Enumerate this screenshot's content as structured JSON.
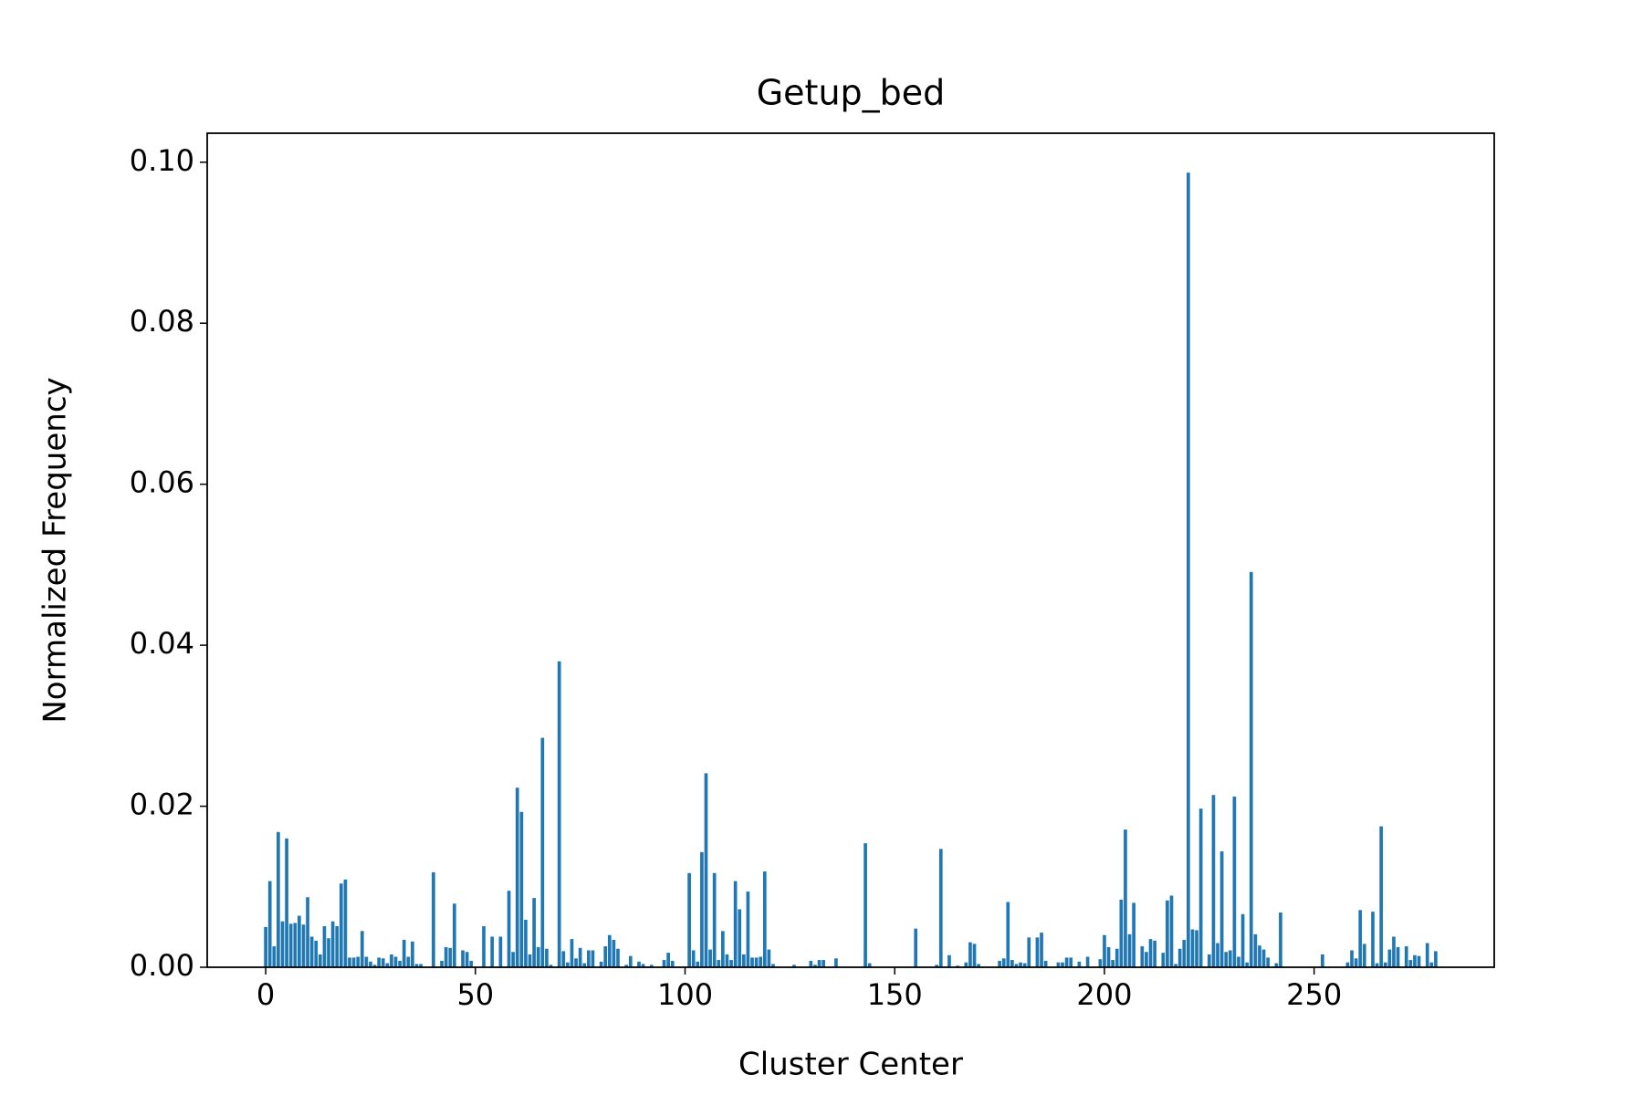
{
  "chart_data": {
    "type": "bar",
    "title": "Getup_bed",
    "xlabel": "Cluster Center",
    "ylabel": "Normalized Frequency",
    "color": "#1f77b4",
    "x": [
      0,
      1,
      2,
      3,
      4,
      5,
      6,
      7,
      8,
      9,
      10,
      11,
      12,
      13,
      14,
      15,
      16,
      17,
      18,
      19,
      20,
      21,
      22,
      23,
      24,
      25,
      26,
      27,
      28,
      29,
      30,
      31,
      32,
      33,
      34,
      35,
      36,
      37,
      38,
      39,
      40,
      41,
      42,
      43,
      44,
      45,
      46,
      47,
      48,
      49,
      50,
      51,
      52,
      53,
      54,
      55,
      56,
      57,
      58,
      59,
      60,
      61,
      62,
      63,
      64,
      65,
      66,
      67,
      68,
      69,
      70,
      71,
      72,
      73,
      74,
      75,
      76,
      77,
      78,
      79,
      80,
      81,
      82,
      83,
      84,
      85,
      86,
      87,
      88,
      89,
      90,
      91,
      92,
      93,
      94,
      95,
      96,
      97,
      98,
      99,
      100,
      101,
      102,
      103,
      104,
      105,
      106,
      107,
      108,
      109,
      110,
      111,
      112,
      113,
      114,
      115,
      116,
      117,
      118,
      119,
      120,
      121,
      122,
      123,
      124,
      125,
      126,
      127,
      128,
      129,
      130,
      131,
      132,
      133,
      134,
      135,
      136,
      137,
      138,
      139,
      140,
      141,
      142,
      143,
      144,
      145,
      146,
      147,
      148,
      149,
      150,
      151,
      152,
      153,
      154,
      155,
      156,
      157,
      158,
      159,
      160,
      161,
      162,
      163,
      164,
      165,
      166,
      167,
      168,
      169,
      170,
      171,
      172,
      173,
      174,
      175,
      176,
      177,
      178,
      179,
      180,
      181,
      182,
      183,
      184,
      185,
      186,
      187,
      188,
      189,
      190,
      191,
      192,
      193,
      194,
      195,
      196,
      197,
      198,
      199,
      200,
      201,
      202,
      203,
      204,
      205,
      206,
      207,
      208,
      209,
      210,
      211,
      212,
      213,
      214,
      215,
      216,
      217,
      218,
      219,
      220,
      221,
      222,
      223,
      224,
      225,
      226,
      227,
      228,
      229,
      230,
      231,
      232,
      233,
      234,
      235,
      236,
      237,
      238,
      239,
      240,
      241,
      242,
      243,
      244,
      245,
      246,
      247,
      248,
      249,
      250,
      251,
      252,
      253,
      254,
      255,
      256,
      257,
      258,
      259,
      260,
      261,
      262,
      263,
      264,
      265,
      266,
      267,
      268,
      269,
      270,
      271,
      272,
      273,
      274,
      275,
      276,
      277,
      278,
      279
    ],
    "values": [
      0.005,
      0.0107,
      0.0026,
      0.0168,
      0.0057,
      0.016,
      0.0054,
      0.0055,
      0.0064,
      0.0053,
      0.0087,
      0.0038,
      0.0033,
      0.0016,
      0.0051,
      0.0036,
      0.0057,
      0.0051,
      0.0104,
      0.0109,
      0.0012,
      0.0012,
      0.0013,
      0.0045,
      0.0013,
      0.0007,
      0.0003,
      0.0012,
      0.0011,
      0.0005,
      0.0016,
      0.0013,
      0.0008,
      0.0034,
      0.0013,
      0.0032,
      0.0004,
      0.0004,
      0,
      0,
      0.0118,
      0,
      0.0008,
      0.0025,
      0.0024,
      0.0079,
      0,
      0.0021,
      0.0019,
      0.0008,
      0,
      0,
      0.0051,
      0,
      0.0038,
      0,
      0.0038,
      0,
      0.0095,
      0.0019,
      0.0223,
      0.0193,
      0.0059,
      0.0016,
      0.0086,
      0.0025,
      0.0285,
      0.0023,
      0.0003,
      0,
      0.038,
      0.002,
      0.0006,
      0.0035,
      0.0011,
      0.0024,
      0.0005,
      0.0021,
      0.0021,
      0,
      0.0007,
      0.0026,
      0.004,
      0.0034,
      0.0023,
      0,
      0.0003,
      0.0014,
      0,
      0.0007,
      0.0004,
      0.0001,
      0.0003,
      0,
      0,
      0.0009,
      0.0018,
      0.0008,
      0,
      0,
      0,
      0.0117,
      0.0021,
      0.0007,
      0.0143,
      0.0241,
      0.0022,
      0.0117,
      0.0009,
      0.0045,
      0.0016,
      0.0009,
      0.0107,
      0.0072,
      0.0016,
      0.0094,
      0.0012,
      0.0012,
      0.0013,
      0.0119,
      0.0022,
      0.0004,
      0,
      0,
      0,
      0,
      0.0003,
      0,
      0,
      0,
      0.0008,
      0.0003,
      0.0009,
      0.0009,
      0,
      0,
      0.0011,
      0,
      0,
      0,
      0,
      0,
      0,
      0.0154,
      0.0005,
      0,
      0,
      0,
      0,
      0,
      0,
      0,
      0,
      0,
      0,
      0.0048,
      0,
      0,
      0,
      0,
      0.0003,
      0.0147,
      0,
      0.0015,
      0,
      0.0002,
      0,
      0.0006,
      0.0031,
      0.0029,
      0.0004,
      0,
      0,
      0,
      0,
      0.0008,
      0.0011,
      0.0081,
      0.0009,
      0.0004,
      0.0006,
      0.0005,
      0.0037,
      0,
      0.0037,
      0.0043,
      0.0008,
      0,
      0,
      0.0006,
      0.0006,
      0.0012,
      0.0012,
      0,
      0.0007,
      0,
      0.0013,
      0,
      0,
      0.001,
      0.004,
      0.0025,
      0.0009,
      0.0023,
      0.0084,
      0.0171,
      0.0041,
      0.008,
      0,
      0.0026,
      0.0019,
      0.0035,
      0.0033,
      0,
      0.0018,
      0.0083,
      0.0089,
      0.0004,
      0.0023,
      0.0034,
      0.0987,
      0.0047,
      0.0046,
      0.0197,
      0,
      0.0016,
      0.0214,
      0.003,
      0.0144,
      0.0019,
      0.0021,
      0.0212,
      0.0013,
      0.0066,
      0.0006,
      0.0491,
      0.0041,
      0.0027,
      0.0022,
      0.0012,
      0,
      0.0005,
      0.0068,
      0,
      0,
      0,
      0,
      0,
      0,
      0,
      0,
      0,
      0.0016,
      0,
      0,
      0,
      0,
      0,
      0.0006,
      0.0021,
      0.0011,
      0.0071,
      0.0029,
      0,
      0.0069,
      0.0005,
      0.0175,
      0.0006,
      0.0022,
      0.0038,
      0.0025,
      0,
      0.0026,
      0.0009,
      0.0015,
      0.0014,
      0,
      0.003,
      0.0006,
      0.002
    ],
    "xlim": [
      -13.95,
      292.95
    ],
    "xticks": [
      0,
      50,
      100,
      150,
      200,
      250
    ],
    "ylim": [
      0,
      0.1036
    ],
    "yticks": [
      {
        "value": 0,
        "label": "0.00"
      },
      {
        "value": 0.02,
        "label": "0.02"
      },
      {
        "value": 0.04,
        "label": "0.04"
      },
      {
        "value": 0.06,
        "label": "0.06"
      },
      {
        "value": 0.08,
        "label": "0.08"
      },
      {
        "value": 0.1,
        "label": "0.10"
      }
    ],
    "grid": false
  }
}
